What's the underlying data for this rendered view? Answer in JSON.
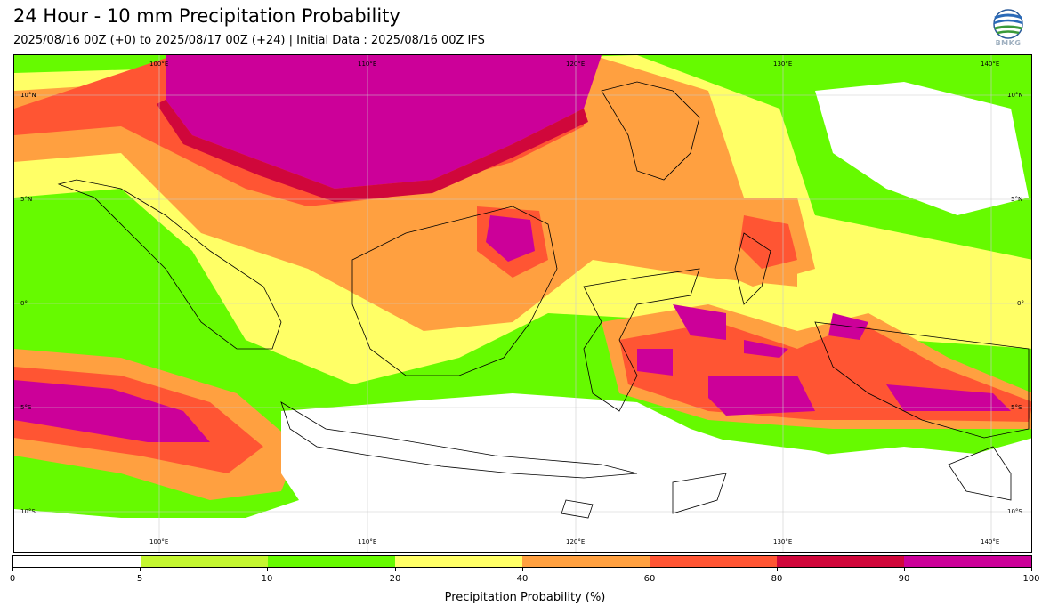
{
  "header": {
    "title": "24 Hour - 10 mm Precipitation Probability",
    "subtitle": "2025/08/16 00Z (+0) to 2025/08/17 00Z (+24) | Initial Data : 2025/08/16 00Z IFS",
    "logo_text": "BMKG"
  },
  "map": {
    "lon_labels_top": [
      "100°E",
      "110°E",
      "120°E",
      "130°E",
      "140°E"
    ],
    "lon_labels_bottom": [
      "100°E",
      "110°E",
      "120°E",
      "130°E",
      "140°E"
    ],
    "lat_labels_left": [
      "10°N",
      "5°N",
      "0°",
      "5°S",
      "10°S"
    ],
    "lat_labels_right": [
      "10°N",
      "5°N",
      "0°",
      "5°S",
      "10°S"
    ]
  },
  "colorbar": {
    "title": "Precipitation Probability (%)",
    "ticks": [
      "0",
      "5",
      "10",
      "20",
      "40",
      "60",
      "80",
      "90",
      "100"
    ],
    "colors": [
      "#ffffff",
      "#c4f630",
      "#66fa00",
      "#ffff66",
      "#ffa040",
      "#ff5533",
      "#d0073b",
      "#cc0099"
    ]
  }
}
